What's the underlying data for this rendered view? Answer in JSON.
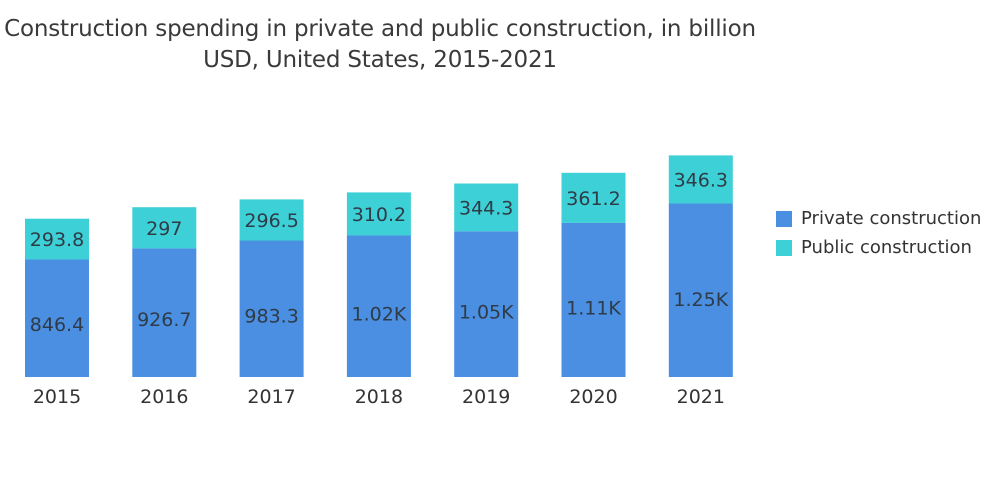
{
  "chart_data": {
    "type": "bar",
    "stacked": true,
    "title": "Construction spending in private and public construction, in billion USD, United States, 2015-2021",
    "xlabel": "",
    "ylabel": "",
    "categories": [
      "2015",
      "2016",
      "2017",
      "2018",
      "2019",
      "2020",
      "2021"
    ],
    "series": [
      {
        "name": "Private construction",
        "color": "#4a8fe2",
        "values": [
          846.4,
          926.7,
          983.3,
          1020,
          1050,
          1110,
          1250
        ],
        "labels": [
          "846.4",
          "926.7",
          "983.3",
          "1.02K",
          "1.05K",
          "1.11K",
          "1.25K"
        ]
      },
      {
        "name": "Public construction",
        "color": "#3dd0d6",
        "values": [
          293.8,
          297,
          296.5,
          310.2,
          344.3,
          361.2,
          346.3
        ],
        "labels": [
          "293.8",
          "297",
          "296.5",
          "310.2",
          "344.3",
          "361.2",
          "346.3"
        ]
      }
    ],
    "ylim": [
      0,
      1600
    ],
    "grid": false,
    "legend": "right"
  }
}
